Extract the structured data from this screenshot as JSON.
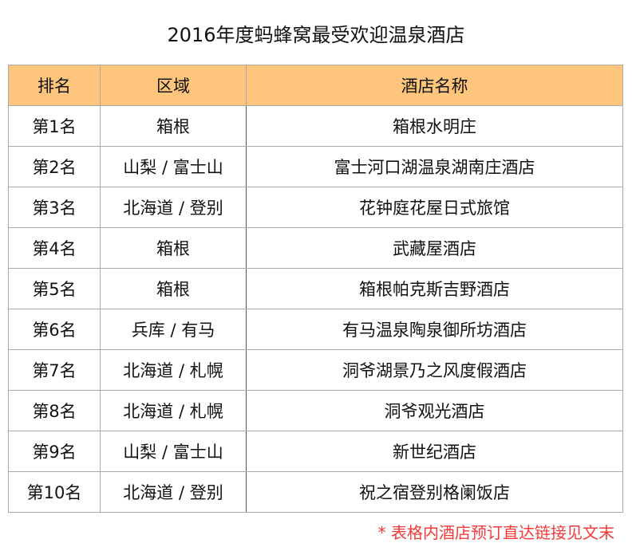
{
  "title": "2016年度蚂蜂窝最受欢迎温泉酒店",
  "table": {
    "headers": [
      "排名",
      "区域",
      "酒店名称"
    ],
    "rows": [
      [
        "第1名",
        "箱根",
        "箱根水明庄"
      ],
      [
        "第2名",
        "山梨 / 富士山",
        "富士河口湖温泉湖南庄酒店"
      ],
      [
        "第3名",
        "北海道 / 登别",
        "花钟庭花屋日式旅馆"
      ],
      [
        "第4名",
        "箱根",
        "武藏屋酒店"
      ],
      [
        "第5名",
        "箱根",
        "箱根帕克斯吉野酒店"
      ],
      [
        "第6名",
        "兵库 / 有马",
        "有马温泉陶泉御所坊酒店"
      ],
      [
        "第7名",
        "北海道 / 札幌",
        "洞爷湖景乃之风度假酒店"
      ],
      [
        "第8名",
        "北海道 / 札幌",
        "洞爷观光酒店"
      ],
      [
        "第9名",
        "山梨 / 富士山",
        "新世纪酒店"
      ],
      [
        "第10名",
        "北海道 / 登别",
        "祝之宿登别格阑饭店"
      ]
    ],
    "header_color": "#fdc67c"
  },
  "footnote": "* 表格内酒店预订直达链接见文末",
  "footnote_color": "#f23a3a"
}
